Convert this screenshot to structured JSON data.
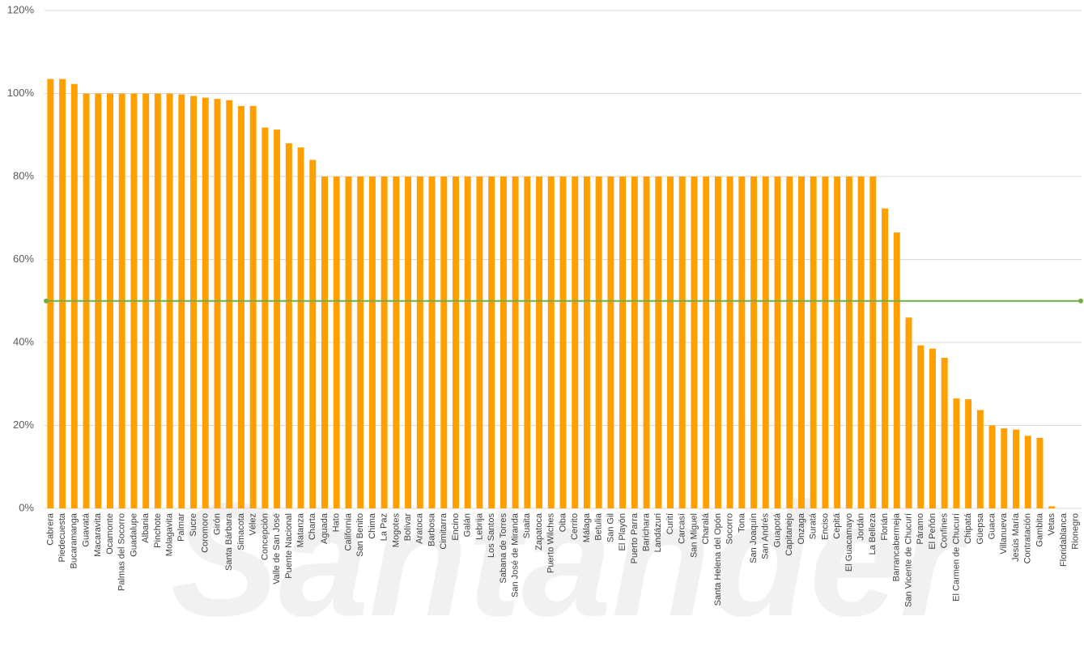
{
  "chart_data": {
    "type": "bar",
    "watermark": "Santander",
    "categories": [
      "Cabrera",
      "Piedecuesta",
      "Bucaramanga",
      "Guavatá",
      "Macaravita",
      "Ocamonte",
      "Palmas del Socorro",
      "Guadalupe",
      "Albania",
      "Pinchote",
      "Molagavita",
      "Palmar",
      "Sucre",
      "Coromoro",
      "Girón",
      "Santa Bárbara",
      "Simacota",
      "Vélez",
      "Concepción",
      "Valle de San José",
      "Puente Nacional",
      "Matanza",
      "Charta",
      "Aguada",
      "Hato",
      "California",
      "San Benito",
      "Chima",
      "La Paz",
      "Mogotes",
      "Bolívar",
      "Aratoca",
      "Barbosa",
      "Cimitarra",
      "Encino",
      "Galán",
      "Lebrija",
      "Los Santos",
      "Sabana de Torres",
      "San José de Miranda",
      "Suaita",
      "Zapatoca",
      "Puerto Wilches",
      "Oiba",
      "Cerrito",
      "Málaga",
      "Betulia",
      "San Gil",
      "El Playón",
      "Puerto Parra",
      "Barichara",
      "Landázuri",
      "Curití",
      "Carcasí",
      "San Miguel",
      "Charalá",
      "Santa Helena del Opón",
      "Socorro",
      "Tona",
      "San Joaquín",
      "San Andrés",
      "Guapotá",
      "Capitanejo",
      "Onzaga",
      "Suratá",
      "Enciso",
      "Cepitá",
      "El Guacamayo",
      "Jordán",
      "La Belleza",
      "Florián",
      "Barrancabermeja",
      "San Vicente de Chucurí",
      "Páramo",
      "El Peñón",
      "Confines",
      "El Carmen de Chucurí",
      "Chipatá",
      "Güepsa",
      "Guaca",
      "Villanueva",
      "Jesús María",
      "Contratación",
      "Gambita",
      "Vetas",
      "Floridablanca",
      "Rionegro"
    ],
    "values": [
      103.5,
      103.5,
      102.3,
      100,
      100,
      100,
      100,
      100,
      100,
      100,
      100,
      99.8,
      99.4,
      99,
      98.7,
      98.4,
      97,
      97,
      91.8,
      91.3,
      88,
      87,
      84,
      80,
      80,
      80,
      80,
      80,
      80,
      80,
      80,
      80,
      80,
      80,
      80,
      80,
      80,
      80,
      80,
      80,
      80,
      80,
      80,
      80,
      80,
      80,
      80,
      80,
      80,
      80,
      80,
      80,
      80,
      80,
      80,
      80,
      80,
      80,
      80,
      80,
      80,
      80,
      80,
      80,
      80,
      80,
      80,
      80,
      80,
      80,
      72.3,
      66.5,
      46,
      39.3,
      38.5,
      36.3,
      26.5,
      26.3,
      23.7,
      20,
      19.3,
      19,
      17.5,
      17,
      0.5,
      0,
      0
    ],
    "color": "#ff9f00",
    "reference_line": {
      "value": 50,
      "color": "#70ad47"
    },
    "ylim": [
      0,
      120
    ],
    "yticks": [
      {
        "value": 0,
        "label": "0%"
      },
      {
        "value": 20,
        "label": "20%"
      },
      {
        "value": 40,
        "label": "40%"
      },
      {
        "value": 60,
        "label": "60%"
      },
      {
        "value": 80,
        "label": "80%"
      },
      {
        "value": 100,
        "label": "100%"
      },
      {
        "value": 120,
        "label": "120%"
      }
    ],
    "grid": true
  }
}
